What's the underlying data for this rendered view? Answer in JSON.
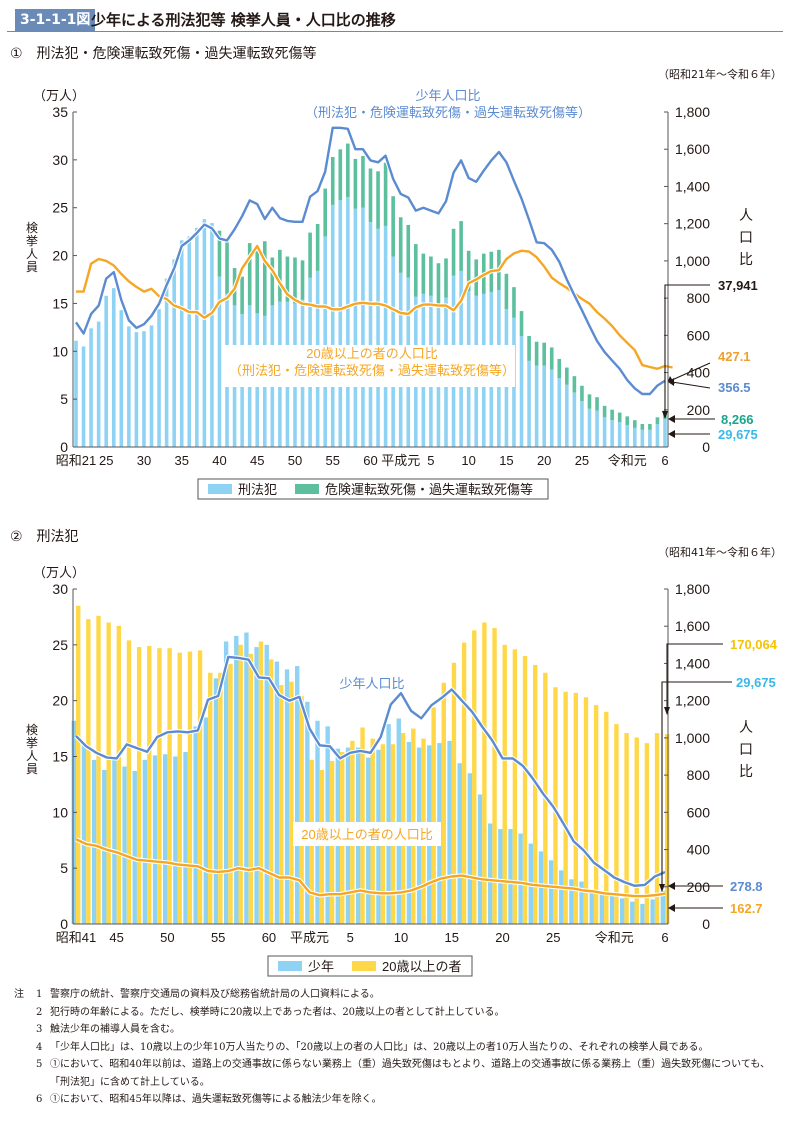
{
  "figure": {
    "number": "3-1-1-1図",
    "title": "少年による刑法犯等 検挙人員・人口比の推移"
  },
  "notes": {
    "lead": "注",
    "items": [
      {
        "n": "1",
        "text": "警察庁の統計、警察庁交通局の資料及び総務省統計局の人口資料による。"
      },
      {
        "n": "2",
        "text": "犯行時の年齢による。ただし、検挙時に20歳以上であった者は、20歳以上の者として計上している。"
      },
      {
        "n": "3",
        "text": "触法少年の補導人員を含む。"
      },
      {
        "n": "4",
        "text": "「少年人口比」は、10歳以上の少年10万人当たりの、「20歳以上の者の人口比」は、20歳以上の者10万人当たりの、それぞれの検挙人員である。"
      },
      {
        "n": "5",
        "text": "①において、昭和40年以前は、道路上の交通事故に係らない業務上（重）過失致死傷はもとより、道路上の交通事故に係る業務上（重）過失致死傷についても、「刑法犯」に含めて計上している。"
      },
      {
        "n": "6",
        "text": "①において、昭和45年以降は、過失運転致死傷等による触法少年を除く。"
      }
    ]
  },
  "chart_data": [
    {
      "type": "bar",
      "section": "①　刑法犯・危険運転致死傷・過失運転致死傷等",
      "range_note": "（昭和21年～令和６年）",
      "ylabel": "検挙人員",
      "yunit": "（万人）",
      "y2label": "人口比",
      "ylim": [
        0,
        35
      ],
      "y2lim": [
        0,
        1800
      ],
      "yticks": [
        "0",
        "5",
        "10",
        "15",
        "20",
        "25",
        "30",
        "35"
      ],
      "y2ticks": [
        "0",
        "200",
        "400",
        "600",
        "800",
        "1,000",
        "1,200",
        "1,400",
        "1,600",
        "1,800"
      ],
      "xticks": [
        {
          "i": 0,
          "label": "昭和21"
        },
        {
          "i": 4,
          "label": "25"
        },
        {
          "i": 9,
          "label": "30"
        },
        {
          "i": 14,
          "label": "35"
        },
        {
          "i": 19,
          "label": "40"
        },
        {
          "i": 24,
          "label": "45"
        },
        {
          "i": 29,
          "label": "50"
        },
        {
          "i": 34,
          "label": "55"
        },
        {
          "i": 39,
          "label": "60"
        },
        {
          "i": 43,
          "label": "平成元"
        },
        {
          "i": 47,
          "label": "5"
        },
        {
          "i": 52,
          "label": "10"
        },
        {
          "i": 57,
          "label": "15"
        },
        {
          "i": 62,
          "label": "20"
        },
        {
          "i": 67,
          "label": "25"
        },
        {
          "i": 73,
          "label": "令和元"
        },
        {
          "i": 78,
          "label": "6"
        }
      ],
      "legend": [
        "刑法犯",
        "危険運転致死傷・過失運転致死傷等"
      ],
      "annotations": {
        "youth_rate_label": [
          "少年人口比",
          "（刑法犯・危険運転致死傷・過失運転致死傷等）"
        ],
        "adult_rate_label": [
          "20歳以上の者の人口比",
          "（刑法犯・危険運転致死傷・過失運転致死傷等）"
        ],
        "callouts": [
          {
            "text": "37,941",
            "color": "#231815"
          },
          {
            "text": "427.1",
            "color": "#f0a030"
          },
          {
            "text": "356.5",
            "color": "#5b8bd0"
          },
          {
            "text": "8,266",
            "color": "#1aa58a"
          },
          {
            "text": "29,675",
            "color": "#3bb8e8"
          }
        ]
      },
      "colors": {
        "penal": "#8fd3f4",
        "traffic": "#5cbf9e",
        "youth_rate": "#5b8bd0",
        "adult_rate": "#f5a623"
      },
      "series": [
        {
          "name": "刑法犯",
          "values": [
            11.1,
            10.5,
            12.4,
            13.1,
            15.8,
            16.6,
            14.3,
            12.6,
            12.0,
            12.1,
            12.7,
            14.4,
            17.6,
            19.6,
            21.6,
            22.0,
            22.9,
            23.8,
            23.4,
            17.8,
            16.0,
            14.8,
            13.9,
            14.8,
            14.0,
            13.7,
            14.8,
            15.2,
            15.2,
            15.0,
            15.4,
            17.7,
            18.4,
            22.0,
            25.3,
            25.8,
            26.1,
            24.9,
            25.0,
            23.5,
            22.8,
            23.1,
            19.9,
            18.2,
            17.7,
            15.7,
            16.0,
            15.8,
            14.9,
            15.6,
            17.9,
            18.4,
            16.3,
            15.8,
            16.0,
            16.2,
            16.4,
            14.4,
            13.5,
            11.6,
            9.0,
            8.5,
            8.5,
            8.1,
            7.2,
            6.5,
            5.7,
            4.8,
            4.0,
            3.8,
            3.1,
            2.8,
            2.6,
            2.3,
            2.0,
            1.8,
            1.8,
            2.4,
            2.97
          ]
        },
        {
          "name": "危険運転致死傷・過失運転致死傷等",
          "values": [
            0,
            0,
            0,
            0,
            0,
            0,
            0,
            0,
            0,
            0,
            0,
            0,
            0,
            0,
            0,
            0,
            0,
            0,
            0,
            4.8,
            5.4,
            3.9,
            3.9,
            6.5,
            6.5,
            7.8,
            5.0,
            5.4,
            4.7,
            4.8,
            4.1,
            4.7,
            4.9,
            5.0,
            5.0,
            5.3,
            5.6,
            5.2,
            5.4,
            5.6,
            6.0,
            6.6,
            6.3,
            5.8,
            5.5,
            5.5,
            4.2,
            4.1,
            4.3,
            4.1,
            4.9,
            5.2,
            4.2,
            3.8,
            4.2,
            4.2,
            4.2,
            3.7,
            3.2,
            2.6,
            2.6,
            2.5,
            2.4,
            2.3,
            2.0,
            1.8,
            1.7,
            1.6,
            1.5,
            1.4,
            1.2,
            1.1,
            1.0,
            0.9,
            0.8,
            0.6,
            0.6,
            0.7,
            0.83
          ]
        },
        {
          "name": "少年人口比",
          "axis": "right",
          "values": [
            670,
            610,
            715,
            760,
            905,
            940,
            790,
            680,
            640,
            660,
            705,
            770,
            870,
            960,
            1080,
            1110,
            1150,
            1195,
            1175,
            1120,
            1110,
            1170,
            1240,
            1325,
            1305,
            1225,
            1285,
            1230,
            1215,
            1210,
            1210,
            1345,
            1375,
            1480,
            1715,
            1715,
            1710,
            1600,
            1600,
            1540,
            1530,
            1565,
            1440,
            1360,
            1340,
            1270,
            1285,
            1270,
            1255,
            1320,
            1475,
            1540,
            1445,
            1425,
            1485,
            1540,
            1585,
            1530,
            1430,
            1335,
            1220,
            1100,
            1095,
            1060,
            995,
            900,
            815,
            735,
            650,
            570,
            510,
            465,
            420,
            360,
            315,
            285,
            285,
            330,
            356.5
          ]
        },
        {
          "name": "20歳以上の者の人口比",
          "axis": "right",
          "values": [
            835,
            835,
            985,
            1010,
            1000,
            975,
            930,
            890,
            860,
            835,
            850,
            810,
            795,
            760,
            745,
            725,
            725,
            695,
            720,
            780,
            800,
            850,
            960,
            1020,
            1080,
            1000,
            950,
            880,
            820,
            790,
            770,
            765,
            755,
            755,
            740,
            740,
            755,
            770,
            775,
            770,
            770,
            760,
            740,
            720,
            715,
            750,
            765,
            765,
            760,
            760,
            735,
            785,
            880,
            900,
            925,
            945,
            950,
            1010,
            1040,
            1055,
            1050,
            1020,
            970,
            910,
            880,
            855,
            825,
            795,
            770,
            725,
            690,
            650,
            600,
            560,
            520,
            440,
            430,
            420,
            435,
            427.1
          ]
        }
      ]
    },
    {
      "type": "bar",
      "section": "②　刑法犯",
      "range_note": "（昭和41年～令和６年）",
      "ylabel": "検挙人員",
      "yunit": "（万人）",
      "y2label": "人口比",
      "ylim": [
        0,
        30
      ],
      "y2lim": [
        0,
        1800
      ],
      "yticks": [
        "0",
        "5",
        "10",
        "15",
        "20",
        "25",
        "30"
      ],
      "y2ticks": [
        "0",
        "200",
        "400",
        "600",
        "800",
        "1,000",
        "1,200",
        "1,400",
        "1,600",
        "1,800"
      ],
      "xticks": [
        {
          "i": 0,
          "label": "昭和41"
        },
        {
          "i": 4,
          "label": "45"
        },
        {
          "i": 9,
          "label": "50"
        },
        {
          "i": 14,
          "label": "55"
        },
        {
          "i": 19,
          "label": "60"
        },
        {
          "i": 23,
          "label": "平成元"
        },
        {
          "i": 27,
          "label": "5"
        },
        {
          "i": 32,
          "label": "10"
        },
        {
          "i": 37,
          "label": "15"
        },
        {
          "i": 42,
          "label": "20"
        },
        {
          "i": 47,
          "label": "25"
        },
        {
          "i": 53,
          "label": "令和元"
        },
        {
          "i": 58,
          "label": "6"
        }
      ],
      "legend": [
        "少年",
        "20歳以上の者"
      ],
      "annotations": {
        "youth_rate_label": [
          "少年人口比"
        ],
        "adult_rate_label": [
          "20歳以上の者の人口比"
        ],
        "callouts": [
          {
            "text": "170,064",
            "color": "#f5c400"
          },
          {
            "text": "29,675",
            "color": "#3bb8e8"
          },
          {
            "text": "278.8",
            "color": "#5b8bd0"
          },
          {
            "text": "162.7",
            "color": "#f5a623"
          }
        ]
      },
      "colors": {
        "youth": "#8fd3f4",
        "adult": "#ffd84a",
        "youth_rate": "#5b8bd0",
        "adult_rate": "#f5a623"
      },
      "series": [
        {
          "name": "少年",
          "values": [
            18.2,
            16.0,
            14.7,
            13.8,
            14.7,
            14.1,
            13.7,
            14.7,
            15.1,
            15.2,
            15.0,
            15.4,
            17.7,
            18.5,
            22.0,
            25.3,
            25.8,
            26.1,
            24.8,
            25.0,
            23.5,
            22.8,
            23.1,
            19.9,
            18.2,
            17.7,
            15.7,
            15.8,
            15.8,
            14.9,
            15.6,
            17.9,
            18.4,
            16.3,
            15.8,
            16.0,
            16.2,
            16.4,
            14.4,
            13.5,
            11.6,
            9.0,
            8.5,
            8.5,
            8.1,
            7.2,
            6.5,
            5.7,
            4.8,
            4.0,
            3.8,
            3.1,
            2.8,
            2.6,
            2.3,
            2.0,
            1.8,
            2.2,
            2.97
          ]
        },
        {
          "name": "20歳以上の者",
          "values": [
            28.5,
            27.3,
            27.6,
            27.0,
            26.7,
            25.4,
            24.8,
            24.9,
            24.7,
            24.7,
            24.3,
            24.4,
            24.5,
            22.5,
            22.5,
            23.3,
            25.0,
            24.2,
            25.3,
            23.7,
            21.4,
            21.7,
            20.4,
            14.7,
            13.8,
            14.6,
            15.4,
            16.4,
            17.6,
            16.6,
            16.1,
            16.1,
            17.1,
            17.5,
            16.6,
            19.4,
            21.6,
            23.4,
            25.2,
            26.3,
            27.0,
            26.5,
            25.0,
            24.6,
            24.0,
            23.2,
            22.5,
            21.2,
            20.8,
            20.7,
            20.3,
            19.6,
            19.0,
            17.9,
            17.1,
            16.7,
            16.2,
            17.1,
            17.0
          ]
        },
        {
          "name": "少年人口比",
          "axis": "right",
          "values": [
            1010,
            955,
            920,
            895,
            890,
            965,
            945,
            925,
            1005,
            1030,
            1035,
            1030,
            1040,
            1205,
            1225,
            1435,
            1430,
            1420,
            1325,
            1320,
            1230,
            1200,
            1220,
            1050,
            960,
            955,
            890,
            920,
            930,
            920,
            1005,
            1180,
            1240,
            1145,
            1105,
            1175,
            1215,
            1260,
            1200,
            1140,
            1060,
            985,
            890,
            890,
            850,
            780,
            700,
            630,
            540,
            445,
            395,
            330,
            290,
            250,
            225,
            205,
            210,
            255,
            278.8
          ]
        },
        {
          "name": "20歳以上の者の人口比",
          "axis": "right",
          "values": [
            455,
            430,
            420,
            400,
            385,
            365,
            345,
            340,
            335,
            330,
            320,
            315,
            310,
            285,
            280,
            285,
            300,
            290,
            300,
            275,
            250,
            250,
            235,
            170,
            155,
            160,
            160,
            170,
            180,
            170,
            165,
            165,
            170,
            180,
            200,
            225,
            245,
            255,
            260,
            250,
            240,
            235,
            230,
            225,
            220,
            210,
            205,
            200,
            195,
            190,
            180,
            175,
            165,
            160,
            155,
            150,
            150,
            155,
            162.7
          ]
        }
      ]
    }
  ]
}
